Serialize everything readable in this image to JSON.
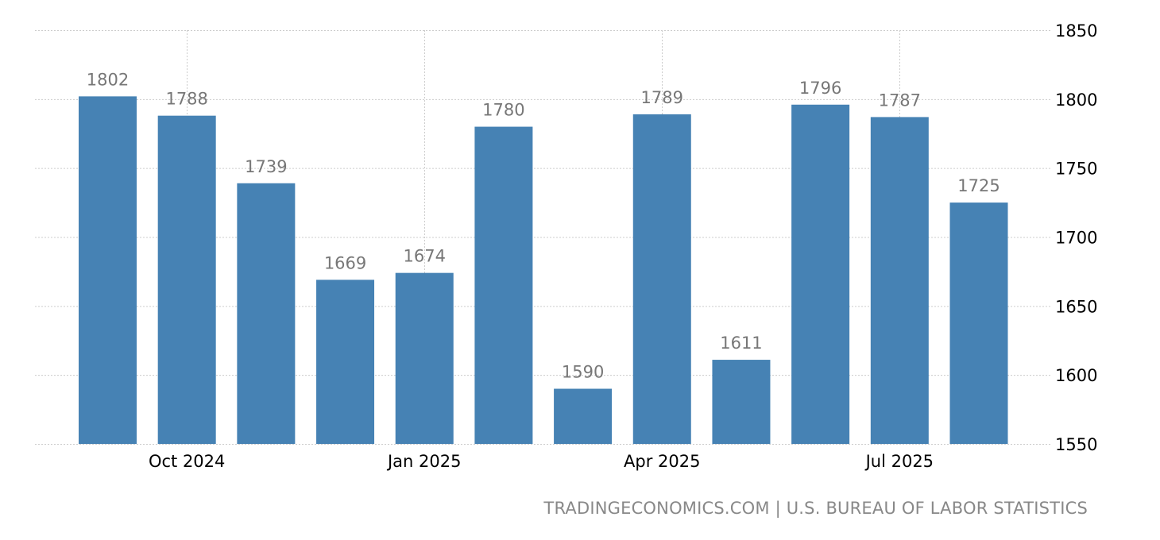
{
  "chart_data": {
    "type": "bar",
    "categories": [
      "Sep 2024",
      "Oct 2024",
      "Nov 2024",
      "Dec 2024",
      "Jan 2025",
      "Feb 2025",
      "Mar 2025",
      "Apr 2025",
      "May 2025",
      "Jun 2025",
      "Jul 2025",
      "Aug 2025"
    ],
    "values": [
      1802,
      1788,
      1739,
      1669,
      1674,
      1780,
      1590,
      1789,
      1611,
      1796,
      1787,
      1725
    ],
    "x_tick_labels": [
      "Oct 2024",
      "Jan 2025",
      "Apr 2025",
      "Jul 2025"
    ],
    "y_ticks": [
      1550,
      1600,
      1650,
      1700,
      1750,
      1800,
      1850
    ],
    "ylim": [
      1550,
      1850
    ],
    "y_axis_position": "right",
    "grid": true,
    "data_labels": true,
    "bar_color": "#4682B4",
    "label_color": "#777777",
    "title": "",
    "xlabel": "",
    "ylabel": ""
  },
  "source": "TRADINGECONOMICS.COM | U.S. BUREAU OF LABOR STATISTICS"
}
